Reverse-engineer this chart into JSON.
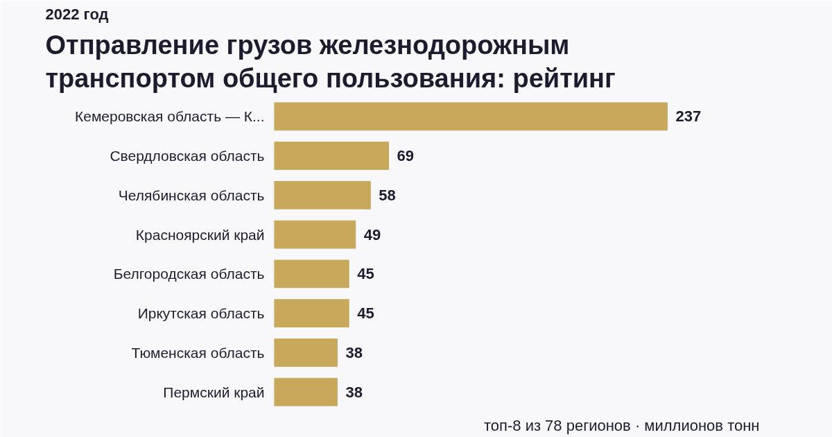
{
  "chart_data": {
    "type": "bar",
    "orientation": "horizontal",
    "subtitle": "2022 год",
    "title": "Отправление грузов железнодорожным транспортом общего пользования: рейтинг",
    "categories": [
      "Кемеровская область — К...",
      "Свердловская область",
      "Челябинская область",
      "Красноярский край",
      "Белгородская область",
      "Иркутская область",
      "Тюменская область",
      "Пермский край"
    ],
    "values": [
      237,
      69,
      58,
      49,
      45,
      45,
      38,
      38
    ],
    "color": "#c8a95b",
    "data_labels": true,
    "tick_labels": "y",
    "annotations": [
      "топ-8 из 78 регионов · миллионов тонн"
    ]
  }
}
